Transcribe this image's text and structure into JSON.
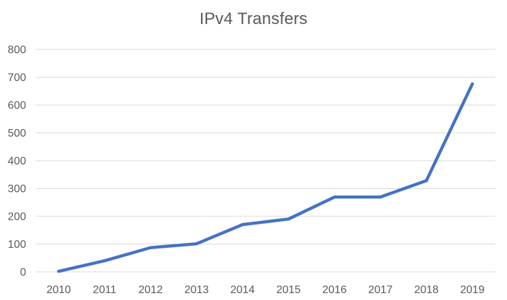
{
  "chart_data": {
    "type": "line",
    "title": "IPv4 Transfers",
    "xlabel": "",
    "ylabel": "",
    "categories": [
      "2010",
      "2011",
      "2012",
      "2013",
      "2014",
      "2015",
      "2016",
      "2017",
      "2018",
      "2019"
    ],
    "series": [
      {
        "values": [
          2,
          40,
          87,
          101,
          170,
          190,
          269,
          269,
          328,
          676
        ],
        "color": "#4472C4"
      }
    ],
    "ylim": [
      0,
      800
    ],
    "yticks": [
      "0",
      "100",
      "200",
      "300",
      "400",
      "500",
      "600",
      "700",
      "800"
    ],
    "grid": true,
    "legend": "none",
    "gridline_color": "#D9D9D9",
    "text_color": "#595959"
  }
}
